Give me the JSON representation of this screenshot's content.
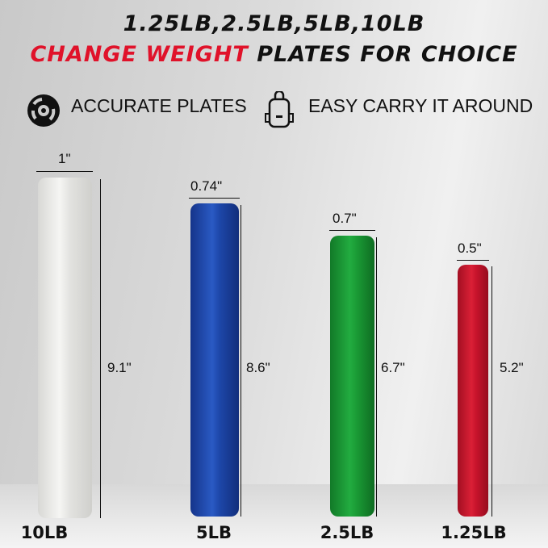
{
  "headline": {
    "line1": "1.25LB,2.5LB,5LB,10LB",
    "line2_red": "CHANGE WEIGHT",
    "line2_rest": " PLATES FOR CHOICE",
    "red": "#e0122a"
  },
  "features": [
    {
      "icon": "weight-plate-icon",
      "label": "ACCURATE PLATES"
    },
    {
      "icon": "backpack-icon",
      "label": "EASY CARRY IT AROUND"
    }
  ],
  "plates": [
    {
      "weight": "10LB",
      "width": "1\"",
      "height": "9.1\"",
      "color": "#ececea"
    },
    {
      "weight": "5LB",
      "width": "0.74\"",
      "height": "8.6\"",
      "color": "#1e45a8"
    },
    {
      "weight": "2.5LB",
      "width": "0.7\"",
      "height": "6.7\"",
      "color": "#1a9a35"
    },
    {
      "weight": "1.25LB",
      "width": "0.5\"",
      "height": "5.2\"",
      "color": "#c8142c"
    }
  ]
}
